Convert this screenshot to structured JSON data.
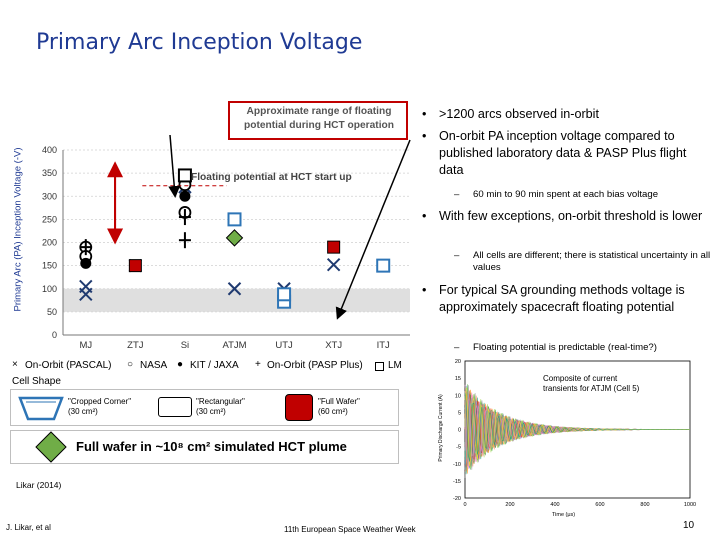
{
  "slide": {
    "title": "Primary Arc Inception Voltage",
    "page_number": "10",
    "footer_left": "J. Likar, et al",
    "footer_center": "11th European Space Weather Week",
    "citation": "Likar (2014)"
  },
  "bullets": [
    {
      "text": ">1200 arcs observed in-orbit"
    },
    {
      "text": "On-orbit PA inception voltage compared to published laboratory data & PASP Plus flight data"
    },
    {
      "text": "With few exceptions, on-orbit threshold is lower"
    },
    {
      "text": "For typical SA grounding methods voltage is approximately spacecraft floating potential"
    }
  ],
  "sub_bullets": [
    {
      "text": "60 min to 90 min spent at each bias voltage"
    },
    {
      "text": "All cells are different; there is statistical uncertainty in all values"
    },
    {
      "text": "Floating potential is predictable (real-time?)"
    }
  ],
  "callouts": {
    "range_label": "Approximate range of floating potential during HCT operation",
    "start_label": "Floating potential at HCT start up"
  },
  "legend": {
    "pascal": "On-Orbit (PASCAL)",
    "nasa": "NASA",
    "kit": "KIT / JAXA",
    "pasp": "On-Orbit (PASP Plus)",
    "lm": "LM"
  },
  "cell_shape": {
    "heading": "Cell Shape",
    "cropped": "\"Cropped Corner\"",
    "cropped_area": "(30 cm²)",
    "rect": "\"Rectangular\"",
    "rect_area": "(30 cm²)",
    "full": "\"Full Wafer\"",
    "full_area": "(60 cm²)",
    "hct_label": "Full wafer in ~10⁸ cm² simulated HCT plume"
  },
  "inset": {
    "annotation": "Composite of current transients for ATJM (Cell 5)",
    "ylabel": "Primary Discharge Current (A)",
    "xlabel": "Time (μs)"
  },
  "colors": {
    "title": "#1f3a93",
    "nasa_square": "#2e75b6",
    "kit_red": "#c00000",
    "green": "#70ad47",
    "shade": "#d9d9d9"
  },
  "chart_data": [
    {
      "type": "scatter",
      "title": "",
      "xlabel": "",
      "ylabel": "Primary Arc (PA) Inception Voltage (-V)",
      "ylim": [
        0,
        400
      ],
      "yticks": [
        0,
        50,
        100,
        150,
        200,
        250,
        300,
        350,
        400
      ],
      "categories": [
        "MJ",
        "ZTJ",
        "Si",
        "ATJM",
        "UTJ",
        "XTJ",
        "ITJ"
      ],
      "shaded_range_y": [
        50,
        100
      ],
      "start_up_potential_y": 340,
      "arrow_range_y": [
        200,
        380
      ],
      "series": [
        {
          "name": "On-Orbit (PASCAL)",
          "marker": "x",
          "points": [
            {
              "x": "MJ",
              "y": 105
            },
            {
              "x": "MJ",
              "y": 88
            },
            {
              "x": "ZTJ",
              "y": 150
            },
            {
              "x": "Si",
              "y": 320
            },
            {
              "x": "ATJM",
              "y": 100
            },
            {
              "x": "UTJ",
              "y": 100
            },
            {
              "x": "XTJ",
              "y": 152
            }
          ]
        },
        {
          "name": "NASA",
          "marker": "circle",
          "points": [
            {
              "x": "MJ",
              "y": 190
            },
            {
              "x": "MJ",
              "y": 170
            },
            {
              "x": "Si",
              "y": 325
            },
            {
              "x": "Si",
              "y": 265
            }
          ]
        },
        {
          "name": "KIT / JAXA",
          "marker": "filled-circle",
          "points": [
            {
              "x": "MJ",
              "y": 155
            },
            {
              "x": "Si",
              "y": 300
            }
          ]
        },
        {
          "name": "On-Orbit (PASP Plus)",
          "marker": "plus",
          "points": [
            {
              "x": "MJ",
              "y": 190
            },
            {
              "x": "Si",
              "y": 255
            },
            {
              "x": "Si",
              "y": 205
            }
          ]
        },
        {
          "name": "",
          "marker": "open-square",
          "points": [
            {
              "x": "Si",
              "y": 345
            },
            {
              "x": "ATJM",
              "y": 250
            },
            {
              "x": "UTJ",
              "y": 72
            },
            {
              "x": "UTJ",
              "y": 88
            },
            {
              "x": "ITJ",
              "y": 150
            }
          ]
        },
        {
          "name": "",
          "marker": "red-square",
          "points": [
            {
              "x": "ZTJ",
              "y": 150
            },
            {
              "x": "XTJ",
              "y": 190
            }
          ]
        },
        {
          "name": "",
          "marker": "green-diamond",
          "points": [
            {
              "x": "ATJM",
              "y": 210
            }
          ]
        }
      ]
    },
    {
      "type": "line",
      "title": "",
      "xlabel": "Time (μs)",
      "ylabel": "Primary Discharge Current (A)",
      "xlim": [
        0,
        1000
      ],
      "ylim": [
        -20,
        20
      ],
      "xticks": [
        0,
        200,
        400,
        600,
        800,
        1000
      ],
      "yticks": [
        -20,
        -15,
        -10,
        -5,
        0,
        5,
        10,
        15,
        20
      ],
      "series": [
        {
          "name": "",
          "envelope_amplitude": 15,
          "decay_time": 150,
          "period": 35,
          "count": 30
        }
      ]
    }
  ]
}
